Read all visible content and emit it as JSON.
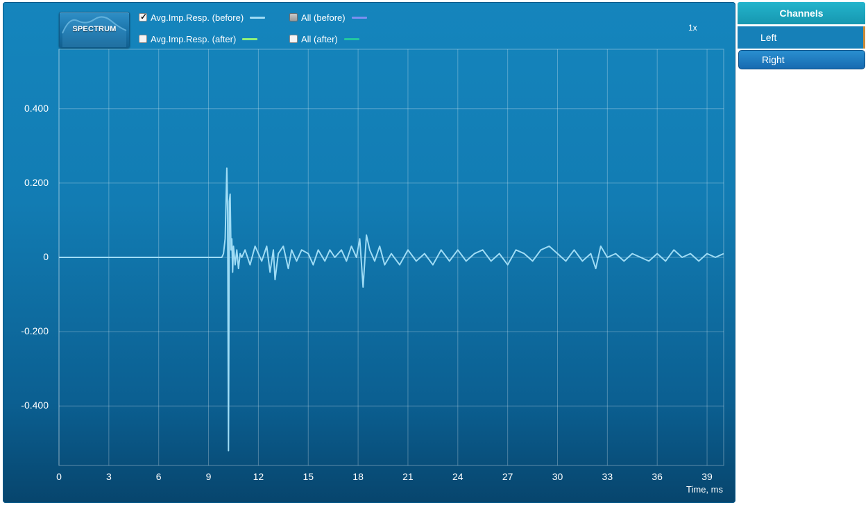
{
  "toolbar": {
    "spectrum_label": "SPECTRUM",
    "zoom_label": "1x"
  },
  "legend": [
    {
      "label": "Avg.Imp.Resp. (before)",
      "state": "checked",
      "color": "#9fdcf5"
    },
    {
      "label": "All (before)",
      "state": "partial",
      "color": "#7d8ff0"
    },
    {
      "label": "Avg.Imp.Resp. (after)",
      "state": "unchecked",
      "color": "#8ff07a"
    },
    {
      "label": "All (after)",
      "state": "unchecked",
      "color": "#22c7a0"
    }
  ],
  "channels": {
    "title": "Channels",
    "items": [
      {
        "label": "Left",
        "selected": true
      },
      {
        "label": "Right",
        "selected": false
      }
    ]
  },
  "chart_data": {
    "type": "line",
    "xlabel": "Time, ms",
    "ylabel": "",
    "xlim": [
      0,
      40
    ],
    "ylim": [
      -0.56,
      0.56
    ],
    "xticks": [
      "0",
      "3",
      "6",
      "9",
      "12",
      "15",
      "18",
      "21",
      "24",
      "27",
      "30",
      "33",
      "36",
      "39"
    ],
    "yticks": [
      "0.400",
      "0.200",
      "0",
      "-0.200",
      "-0.400"
    ],
    "grid": true,
    "series": [
      {
        "color": "#9fdcf5",
        "x": [
          0,
          9.8,
          9.9,
          10.0,
          10.1,
          10.15,
          10.2,
          10.25,
          10.3,
          10.35,
          10.4,
          10.45,
          10.5,
          10.6,
          10.7,
          10.8,
          10.9,
          11.0,
          11.2,
          11.5,
          11.8,
          12.0,
          12.2,
          12.5,
          12.7,
          12.9,
          13.0,
          13.2,
          13.5,
          13.8,
          14.0,
          14.3,
          14.6,
          15.0,
          15.3,
          15.6,
          16.0,
          16.3,
          16.6,
          17.0,
          17.3,
          17.6,
          17.9,
          18.1,
          18.3,
          18.5,
          18.7,
          19.0,
          19.3,
          19.6,
          20.0,
          20.5,
          21.0,
          21.5,
          22.0,
          22.5,
          23.0,
          23.5,
          24.0,
          24.5,
          25.0,
          25.5,
          26.0,
          26.5,
          27.0,
          27.5,
          28.0,
          28.5,
          29.0,
          29.5,
          30.0,
          30.5,
          31.0,
          31.5,
          32.0,
          32.3,
          32.6,
          33.0,
          33.5,
          34.0,
          34.5,
          35.0,
          35.5,
          36.0,
          36.5,
          37.0,
          37.5,
          38.0,
          38.5,
          39.0,
          39.5,
          40.0
        ],
        "y": [
          0,
          0,
          0.01,
          0.05,
          0.24,
          0.12,
          -0.52,
          0.15,
          0.17,
          0.02,
          0.05,
          -0.04,
          0.03,
          -0.02,
          0.02,
          -0.03,
          0.01,
          0.0,
          0.02,
          -0.02,
          0.03,
          0.01,
          -0.01,
          0.03,
          -0.04,
          0.02,
          -0.06,
          0.01,
          0.03,
          -0.03,
          0.02,
          -0.01,
          0.02,
          0.01,
          -0.02,
          0.02,
          -0.01,
          0.02,
          0.0,
          0.02,
          -0.01,
          0.03,
          0.0,
          0.05,
          -0.08,
          0.06,
          0.02,
          -0.01,
          0.03,
          -0.02,
          0.01,
          -0.02,
          0.02,
          -0.01,
          0.01,
          -0.02,
          0.02,
          -0.01,
          0.02,
          -0.01,
          0.01,
          0.02,
          -0.01,
          0.01,
          -0.02,
          0.02,
          0.01,
          -0.01,
          0.02,
          0.03,
          0.01,
          -0.01,
          0.02,
          -0.01,
          0.01,
          -0.03,
          0.03,
          0.0,
          0.01,
          -0.01,
          0.01,
          0.0,
          -0.01,
          0.01,
          -0.01,
          0.02,
          0.0,
          0.01,
          -0.01,
          0.01,
          0.0,
          0.01
        ]
      }
    ]
  }
}
